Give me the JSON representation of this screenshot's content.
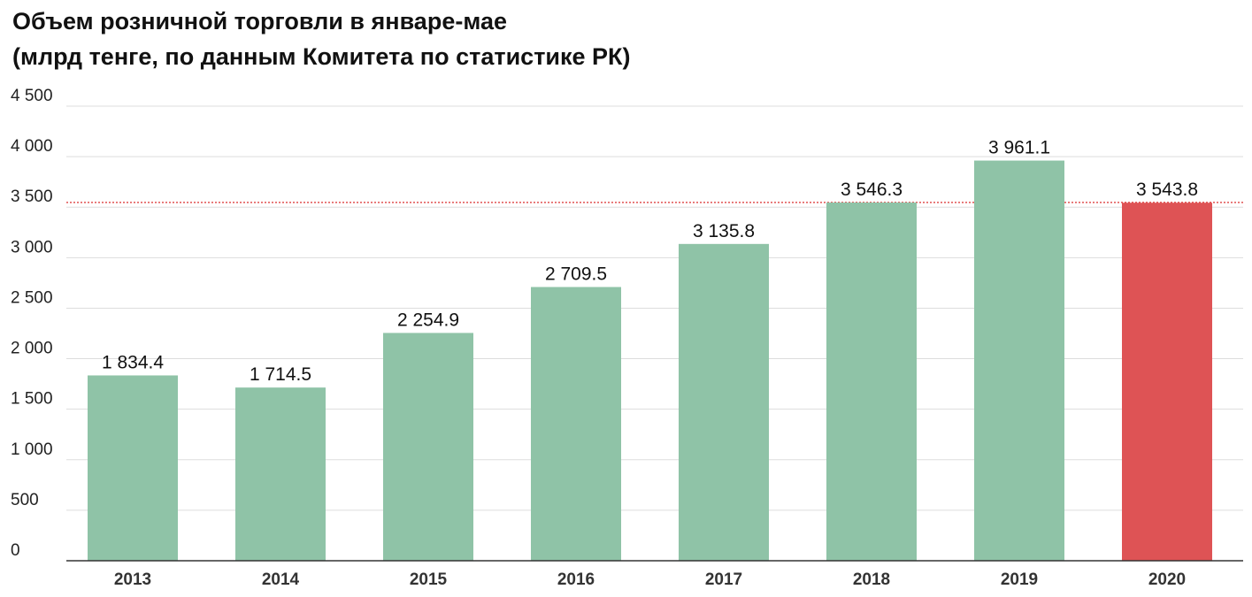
{
  "chart_data": {
    "type": "bar",
    "title": "Объем розничной торговли в январе-мае",
    "subtitle": "(млрд тенге, по данным Комитета по статистике РК)",
    "xlabel": "",
    "ylabel": "",
    "categories": [
      "2013",
      "2014",
      "2015",
      "2016",
      "2017",
      "2018",
      "2019",
      "2020"
    ],
    "values": [
      1834.4,
      1714.5,
      2254.9,
      2709.5,
      3135.8,
      3546.3,
      3961.1,
      3543.8
    ],
    "data_labels": [
      "1 834.4",
      "1 714.5",
      "2 254.9",
      "2 709.5",
      "3 135.8",
      "3 546.3",
      "3 961.1",
      "3 543.8"
    ],
    "ylim": [
      0,
      4500
    ],
    "y_ticks": [
      0,
      500,
      1000,
      1500,
      2000,
      2500,
      3000,
      3500,
      4000,
      4500
    ],
    "y_tick_labels": [
      "0",
      "500",
      "1 000",
      "1 500",
      "2 000",
      "2 500",
      "3 000",
      "3 500",
      "4 000",
      "4 500"
    ],
    "reference_line": {
      "value": 3546.3,
      "style": "dotted",
      "color": "#e05252"
    },
    "grid": true,
    "legend": "none",
    "colors": {
      "default_bar": "#8fc3a7",
      "highlight_bar": "#de5355",
      "grid": "#dddddd",
      "axis": "#333333"
    },
    "highlight_category": "2020"
  }
}
